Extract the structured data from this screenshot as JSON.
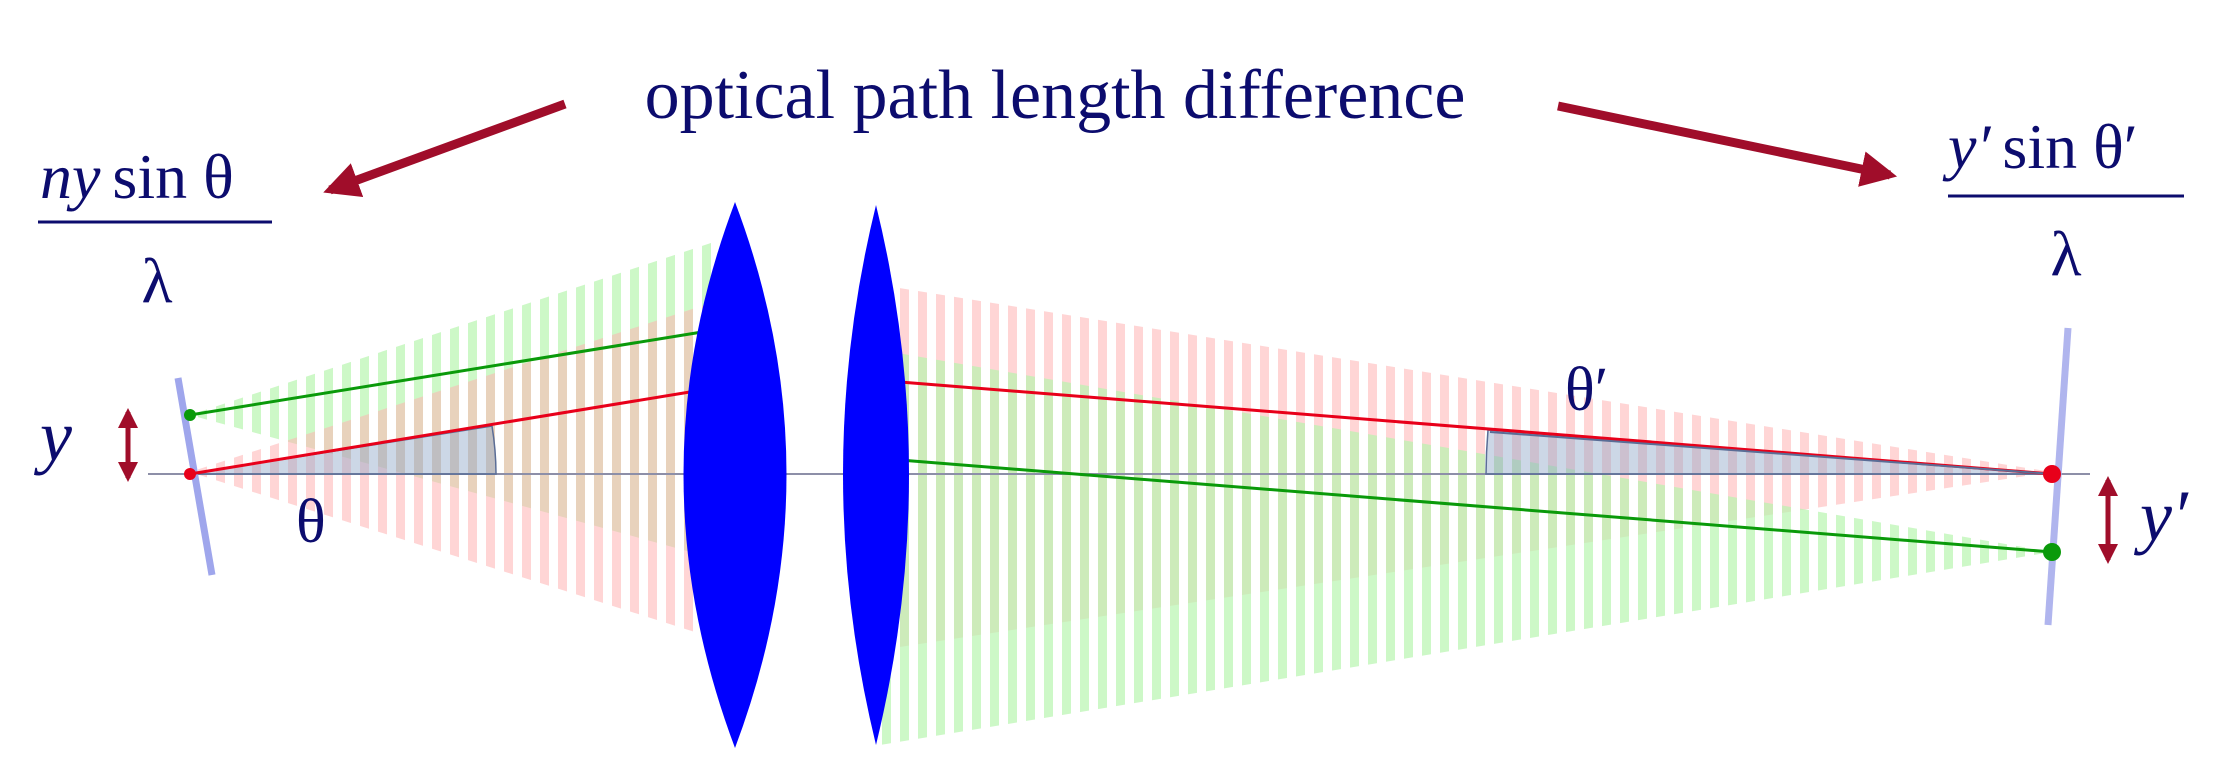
{
  "title": "optical path length difference",
  "left_formula": {
    "numerator_n": "n",
    "numerator_y": "y",
    "numerator_rest": "sin θ",
    "denominator": "λ"
  },
  "right_formula": {
    "numerator_y": "y′",
    "numerator_rest": "sin θ′",
    "denominator": "λ"
  },
  "labels": {
    "y": "y",
    "theta": "θ",
    "theta_prime": "θ′",
    "y_prime": "y′"
  },
  "colors": {
    "text": "#0c0c6e",
    "arrow": "#a00d2a",
    "lens": "#0000ff",
    "red_ray": "#e8001a",
    "green_ray": "#0a9a0a",
    "plane": "#9fa6ec",
    "angle_fill": "#8fa6c8"
  }
}
